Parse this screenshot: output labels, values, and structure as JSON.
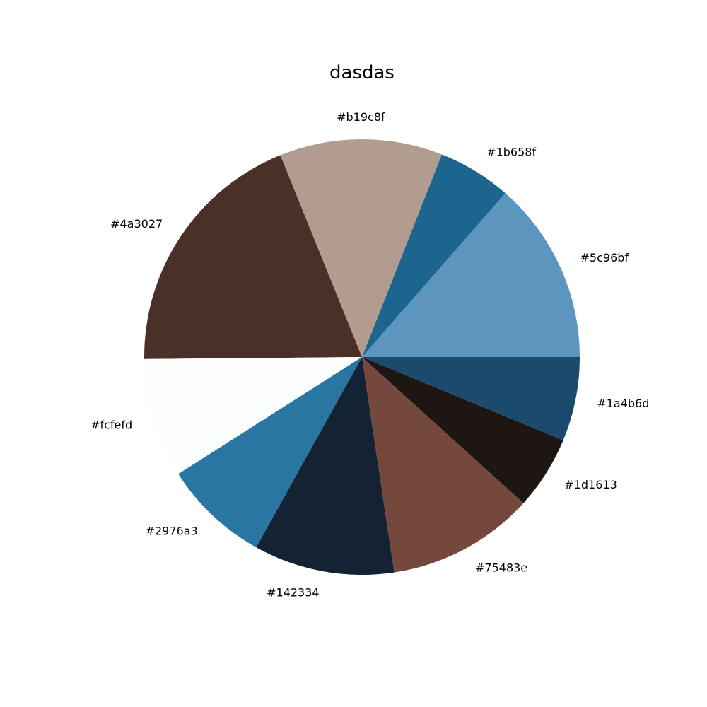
{
  "chart_data": {
    "type": "pie",
    "title": "dasdas",
    "start_angle": 0,
    "direction": "counterclockwise",
    "slices": [
      {
        "label": "#5c96bf",
        "color": "#5c96bf",
        "value": 13.9
      },
      {
        "label": "#1b658f",
        "color": "#1b658f",
        "value": 5.6
      },
      {
        "label": "#b19c8f",
        "color": "#b19c8f",
        "value": 12.4
      },
      {
        "label": "#4a3027",
        "color": "#4a3027",
        "value": 19.5
      },
      {
        "label": "#fcfefd",
        "color": "#fcfefd",
        "value": 9.1
      },
      {
        "label": "#2976a3",
        "color": "#2976a3",
        "value": 8.1
      },
      {
        "label": "#142334",
        "color": "#142334",
        "value": 10.7
      },
      {
        "label": "#75483e",
        "color": "#75483e",
        "value": 11.2
      },
      {
        "label": "#1d1613",
        "color": "#1d1613",
        "value": 5.6
      },
      {
        "label": "#1a4b6d",
        "color": "#1a4b6d",
        "value": 6.4
      }
    ]
  }
}
